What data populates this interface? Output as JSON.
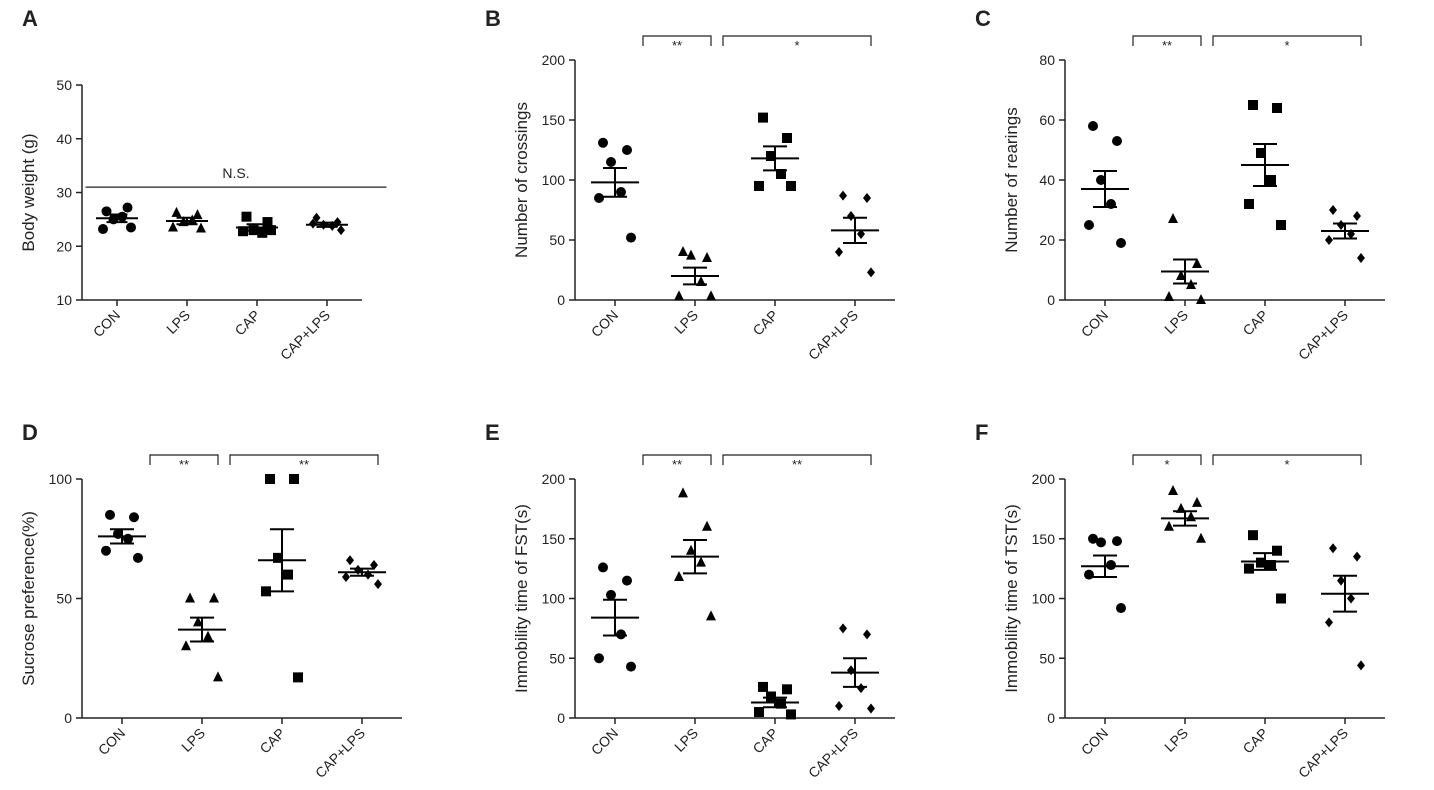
{
  "chart_data": [
    {
      "type": "dot",
      "panel": "A",
      "ylabel": "Body weight (g)",
      "categories": [
        "CON",
        "LPS",
        "CAP",
        "CAP+LPS"
      ],
      "ylim": [
        10,
        50
      ],
      "yticks": [
        10,
        20,
        30,
        40,
        50
      ],
      "markers": [
        "circle",
        "triangle",
        "square",
        "diamond"
      ],
      "color": "#000000",
      "points": [
        [
          26.5,
          27.2,
          25.0,
          25.5,
          23.2,
          23.5
        ],
        [
          26.2,
          25.8,
          24.5,
          24.8,
          23.5,
          23.3
        ],
        [
          25.5,
          24.5,
          23.0,
          22.5,
          22.8,
          23.0
        ],
        [
          25.3,
          24.5,
          24.0,
          23.8,
          24.2,
          23.0
        ]
      ],
      "means": [
        25.2,
        24.7,
        23.5,
        24.0
      ],
      "sems": [
        0.7,
        0.6,
        0.6,
        0.4
      ],
      "brackets": [
        {
          "groups": [
            "CON",
            "CAP+LPS"
          ],
          "label": "N.S.",
          "y": 31,
          "style": "line"
        }
      ]
    },
    {
      "type": "dot",
      "panel": "B",
      "ylabel": "Number of crossings",
      "categories": [
        "CON",
        "LPS",
        "CAP",
        "CAP+LPS"
      ],
      "ylim": [
        0,
        200
      ],
      "yticks": [
        0,
        50,
        100,
        150,
        200
      ],
      "markers": [
        "circle",
        "triangle",
        "square",
        "diamond"
      ],
      "color": "#000000",
      "points": [
        [
          131,
          125,
          115,
          90,
          85,
          52
        ],
        [
          40,
          35,
          37,
          15,
          3,
          3
        ],
        [
          152,
          135,
          120,
          105,
          95,
          95
        ],
        [
          87,
          85,
          70,
          55,
          40,
          23
        ]
      ],
      "means": [
        98,
        20,
        118,
        58
      ],
      "sems": [
        12,
        7,
        10,
        10.5
      ],
      "brackets": [
        {
          "groups": [
            "CON",
            "LPS"
          ],
          "label": "**",
          "style": "bracket"
        },
        {
          "groups": [
            "LPS",
            "CAP+LPS"
          ],
          "label": "*",
          "style": "bracket"
        }
      ]
    },
    {
      "type": "dot",
      "panel": "C",
      "ylabel": "Number of rearings",
      "categories": [
        "CON",
        "LPS",
        "CAP",
        "CAP+LPS"
      ],
      "ylim": [
        0,
        80
      ],
      "yticks": [
        0,
        20,
        40,
        60,
        80
      ],
      "markers": [
        "circle",
        "triangle",
        "square",
        "diamond"
      ],
      "color": "#000000",
      "points": [
        [
          58,
          53,
          40,
          32,
          25,
          19
        ],
        [
          27,
          12,
          8,
          5,
          1,
          0
        ],
        [
          65,
          64,
          49,
          40,
          32,
          25
        ],
        [
          30,
          28,
          25,
          22,
          20,
          14
        ]
      ],
      "means": [
        37,
        9.5,
        45,
        23
      ],
      "sems": [
        6,
        4,
        7,
        2.5
      ],
      "brackets": [
        {
          "groups": [
            "CON",
            "LPS"
          ],
          "label": "**",
          "style": "bracket"
        },
        {
          "groups": [
            "LPS",
            "CAP+LPS"
          ],
          "label": "*",
          "style": "bracket"
        }
      ]
    },
    {
      "type": "dot",
      "panel": "D",
      "ylabel": "Sucrose preference(%)",
      "categories": [
        "CON",
        "LPS",
        "CAP",
        "CAP+LPS"
      ],
      "ylim": [
        0,
        100
      ],
      "yticks": [
        0,
        50,
        100
      ],
      "markers": [
        "circle",
        "triangle",
        "square",
        "diamond"
      ],
      "color": "#000000",
      "points": [
        [
          85,
          84,
          77,
          75,
          70,
          67
        ],
        [
          50,
          50,
          40,
          34,
          30,
          17
        ],
        [
          100,
          100,
          67,
          60,
          53,
          17
        ],
        [
          66,
          64,
          62,
          60,
          59,
          56
        ]
      ],
      "means": [
        76,
        37,
        66,
        61
      ],
      "sems": [
        3,
        5,
        13,
        1.5
      ],
      "brackets": [
        {
          "groups": [
            "CON",
            "LPS"
          ],
          "label": "**",
          "style": "bracket"
        },
        {
          "groups": [
            "LPS",
            "CAP+LPS"
          ],
          "label": "**",
          "style": "bracket"
        }
      ]
    },
    {
      "type": "dot",
      "panel": "E",
      "ylabel": "Immobility time of FST(s)",
      "categories": [
        "CON",
        "LPS",
        "CAP",
        "CAP+LPS"
      ],
      "ylim": [
        0,
        200
      ],
      "yticks": [
        0,
        50,
        100,
        150,
        200
      ],
      "markers": [
        "circle",
        "triangle",
        "square",
        "diamond"
      ],
      "color": "#000000",
      "points": [
        [
          126,
          115,
          103,
          70,
          50,
          43
        ],
        [
          188,
          160,
          140,
          130,
          118,
          85
        ],
        [
          26,
          24,
          18,
          12,
          5,
          3
        ],
        [
          75,
          70,
          40,
          25,
          10,
          8
        ]
      ],
      "means": [
        84,
        135,
        13,
        38
      ],
      "sems": [
        15,
        14,
        4,
        12
      ],
      "brackets": [
        {
          "groups": [
            "CON",
            "LPS"
          ],
          "label": "**",
          "style": "bracket"
        },
        {
          "groups": [
            "LPS",
            "CAP+LPS"
          ],
          "label": "**",
          "style": "bracket"
        }
      ]
    },
    {
      "type": "dot",
      "panel": "F",
      "ylabel": "Immobility time of TST(s)",
      "categories": [
        "CON",
        "LPS",
        "CAP",
        "CAP+LPS"
      ],
      "ylim": [
        0,
        200
      ],
      "yticks": [
        0,
        50,
        100,
        150,
        200
      ],
      "markers": [
        "circle",
        "triangle",
        "square",
        "diamond"
      ],
      "color": "#000000",
      "points": [
        [
          150,
          148,
          147,
          128,
          120,
          92
        ],
        [
          190,
          180,
          175,
          168,
          160,
          150
        ],
        [
          153,
          140,
          130,
          128,
          125,
          100
        ],
        [
          142,
          135,
          115,
          100,
          80,
          44
        ]
      ],
      "means": [
        127,
        167,
        131,
        104
      ],
      "sems": [
        9,
        6,
        7,
        15
      ],
      "brackets": [
        {
          "groups": [
            "CON",
            "LPS"
          ],
          "label": "*",
          "style": "bracket"
        },
        {
          "groups": [
            "LPS",
            "CAP+LPS"
          ],
          "label": "*",
          "style": "bracket"
        }
      ]
    }
  ]
}
